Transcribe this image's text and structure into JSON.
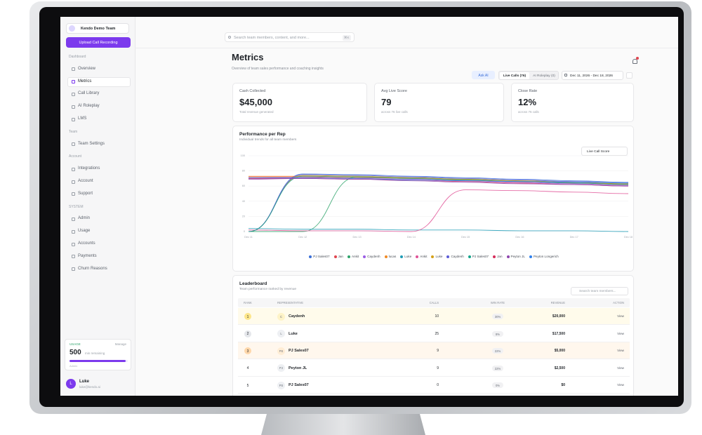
{
  "sidebar": {
    "team": "Kendo Demo Team",
    "upload_button": "Upload Call Recording",
    "sections": [
      {
        "title": "Dashboard",
        "items": [
          "Overview",
          "Metrics",
          "Call Library",
          "AI Roleplay",
          "LMS"
        ]
      },
      {
        "title": "Team",
        "items": [
          "Team Settings"
        ]
      },
      {
        "title": "Account",
        "items": [
          "Integrations",
          "Account",
          "Support"
        ]
      },
      {
        "title": "SYSTEM",
        "items": [
          "Admin",
          "Usage",
          "Accounts",
          "Payments",
          "Churn Reasons"
        ]
      }
    ],
    "usage": {
      "label": "USAGE",
      "manage": "Manage",
      "value": "500",
      "unit": "min remaining",
      "note": "Admin"
    },
    "user": {
      "initial": "L",
      "name": "Luke",
      "email": "luke@kendo.ai"
    }
  },
  "header": {
    "search": "Search team members, content, and more...",
    "shortcut": "⌘K"
  },
  "page": {
    "title": "Metrics",
    "subtitle": "Overview of team sales performance and coaching insights",
    "ask_ai": "Ask AI",
    "tabs": [
      "Live Calls (76)",
      "AI Roleplay (0)"
    ],
    "date_range": "Dec 11, 2026 - Dec 18, 2026"
  },
  "cards": [
    {
      "label": "Cash Collected",
      "value": "$45,000",
      "note": "Total revenue generated"
    },
    {
      "label": "Avg Live Score",
      "value": "79",
      "note": "across 76 live calls"
    },
    {
      "label": "Close Rate",
      "value": "12%",
      "note": "across 76 calls"
    }
  ],
  "chart_data": {
    "type": "line",
    "title": "Performance per Rep",
    "subtitle": "Individual trends for all team members",
    "dropdown": "Live Call Score",
    "categories": [
      "Dec 11",
      "Dec 12",
      "Dec 13",
      "Dec 14",
      "Dec 15",
      "Dec 16",
      "Dec 17",
      "Dec 18"
    ],
    "ylim": [
      0,
      100
    ],
    "yticks": [
      0,
      20,
      40,
      60,
      80,
      100
    ],
    "grid": true,
    "series": [
      {
        "name": "PJ Sales07",
        "color": "#3b6fd8",
        "values": [
          0,
          76,
          75,
          73,
          71,
          69,
          67,
          65
        ]
      },
      {
        "name": "Jan",
        "color": "#e0454f",
        "values": [
          72,
          72,
          71,
          70,
          68,
          66,
          64,
          62
        ]
      },
      {
        "name": "Ankit",
        "color": "#2fa36b",
        "values": [
          0,
          0,
          72,
          71,
          69,
          67,
          65,
          63
        ]
      },
      {
        "name": "Caydenh",
        "color": "#9b5de5",
        "values": [
          70,
          71,
          70,
          69,
          67,
          65,
          63,
          61
        ]
      },
      {
        "name": "lucas",
        "color": "#f08a24",
        "values": [
          73,
          73,
          72,
          70,
          68,
          66,
          64,
          62
        ]
      },
      {
        "name": "Luke",
        "color": "#1e9bb5",
        "values": [
          4,
          3,
          3,
          2,
          2,
          1,
          1,
          0
        ]
      },
      {
        "name": "Ankit",
        "color": "#e05297",
        "values": [
          2,
          1,
          1,
          0,
          55,
          54,
          52,
          50
        ]
      },
      {
        "name": "Luke",
        "color": "#d4a017",
        "values": [
          0,
          74,
          73,
          71,
          69,
          67,
          65,
          63
        ]
      },
      {
        "name": "Caydenh",
        "color": "#5b5bd6",
        "values": [
          0,
          75,
          74,
          72,
          70,
          68,
          66,
          64
        ]
      },
      {
        "name": "PJ Sales07",
        "color": "#14a38b",
        "values": [
          0,
          73,
          72,
          70,
          68,
          66,
          64,
          62
        ]
      },
      {
        "name": "Jan",
        "color": "#d62d5b",
        "values": [
          70,
          70,
          69,
          68,
          66,
          64,
          62,
          60
        ]
      },
      {
        "name": "Peyton JL",
        "color": "#8e44ad",
        "values": [
          69,
          70,
          69,
          67,
          65,
          63,
          62,
          60
        ]
      },
      {
        "name": "Peyton Longerich",
        "color": "#2f80ed",
        "values": [
          71,
          71,
          70,
          68,
          67,
          66,
          65,
          64
        ]
      }
    ]
  },
  "leaderboard": {
    "title": "Leaderboard",
    "subtitle": "Team performance ranked by revenue",
    "search": "Search team members...",
    "columns": [
      "RANK",
      "REPRESENTATIVE",
      "CALLS",
      "WIN RATE",
      "REVENUE",
      "ACTION"
    ],
    "rows": [
      {
        "rank": "1",
        "initials": "C",
        "name": "Caydenh",
        "calls": "10",
        "win_rate": "30%",
        "revenue": "$20,000",
        "action": "View"
      },
      {
        "rank": "2",
        "initials": "L",
        "name": "Luke",
        "calls": "25",
        "win_rate": "8%",
        "revenue": "$17,500",
        "action": "View"
      },
      {
        "rank": "3",
        "initials": "PS",
        "name": "PJ Sales07",
        "calls": "9",
        "win_rate": "22%",
        "revenue": "$5,000",
        "action": "View"
      },
      {
        "rank": "4",
        "initials": "PJ",
        "name": "Peyton JL",
        "calls": "9",
        "win_rate": "22%",
        "revenue": "$2,500",
        "action": "View"
      },
      {
        "rank": "5",
        "initials": "PS",
        "name": "PJ Sales07",
        "calls": "0",
        "win_rate": "0%",
        "revenue": "$0",
        "action": "View"
      }
    ]
  }
}
